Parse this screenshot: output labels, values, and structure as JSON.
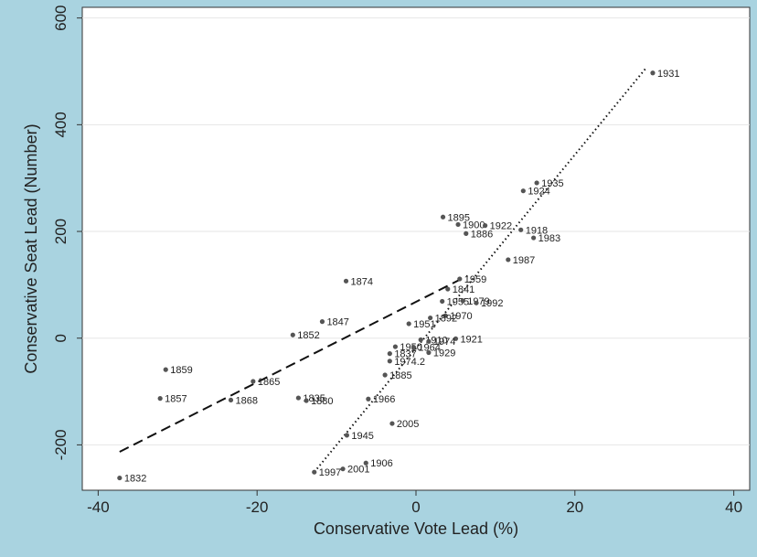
{
  "chart_data": {
    "type": "scatter",
    "title": "",
    "xlabel": "Conservative Vote Lead (%)",
    "ylabel": "Conservative Seat Lead (Number)",
    "xlim": [
      -42,
      42
    ],
    "ylim": [
      -285,
      620
    ],
    "xticks": [
      -40,
      -20,
      0,
      20,
      40
    ],
    "yticks": [
      -200,
      0,
      200,
      400,
      600
    ],
    "grid": true,
    "legend": "none",
    "point_color": "#555555",
    "points": [
      {
        "label": "1931",
        "x": 29.8,
        "y": 497
      },
      {
        "label": "1935",
        "x": 15.2,
        "y": 291
      },
      {
        "label": "1924",
        "x": 13.5,
        "y": 276
      },
      {
        "label": "1895",
        "x": 3.4,
        "y": 227
      },
      {
        "label": "1900",
        "x": 5.3,
        "y": 213
      },
      {
        "label": "1922",
        "x": 8.7,
        "y": 211
      },
      {
        "label": "1918",
        "x": 13.2,
        "y": 203
      },
      {
        "label": "1886",
        "x": 6.3,
        "y": 196
      },
      {
        "label": "1983",
        "x": 14.8,
        "y": 188
      },
      {
        "label": "1987",
        "x": 11.6,
        "y": 147
      },
      {
        "label": "1874",
        "x": -8.8,
        "y": 107
      },
      {
        "label": "1959",
        "x": 5.5,
        "y": 111
      },
      {
        "label": "1841",
        "x": 4.0,
        "y": 92
      },
      {
        "label": "1955",
        "x": 3.3,
        "y": 69
      },
      {
        "label": "1979",
        "x": 5.9,
        "y": 70
      },
      {
        "label": "1992",
        "x": 7.6,
        "y": 66
      },
      {
        "label": "1970",
        "x": 3.7,
        "y": 42
      },
      {
        "label": "1892",
        "x": 1.8,
        "y": 38
      },
      {
        "label": "1847",
        "x": -11.8,
        "y": 31
      },
      {
        "label": "1951",
        "x": -0.9,
        "y": 27
      },
      {
        "label": "1852",
        "x": -15.5,
        "y": 6
      },
      {
        "label": "1910",
        "x": 0.6,
        "y": -3
      },
      {
        "label": "1921",
        "x": 5.0,
        "y": -1
      },
      {
        "label": "1974",
        "x": 1.6,
        "y": -6
      },
      {
        "label": "1950",
        "x": -2.6,
        "y": -16
      },
      {
        "label": "1964",
        "x": -0.3,
        "y": -17
      },
      {
        "label": "1837",
        "x": -3.3,
        "y": -29
      },
      {
        "label": "1929",
        "x": 1.6,
        "y": -27
      },
      {
        "label": "1974.2",
        "x": -3.3,
        "y": -43
      },
      {
        "label": "1859",
        "x": -31.5,
        "y": -59
      },
      {
        "label": "1885",
        "x": -3.9,
        "y": -69
      },
      {
        "label": "1865",
        "x": -20.5,
        "y": -81
      },
      {
        "label": "1857",
        "x": -32.2,
        "y": -113
      },
      {
        "label": "1835",
        "x": -14.8,
        "y": -112
      },
      {
        "label": "1880",
        "x": -13.8,
        "y": -117
      },
      {
        "label": "1868",
        "x": -23.3,
        "y": -116
      },
      {
        "label": "1966",
        "x": -6.0,
        "y": -114
      },
      {
        "label": "2005",
        "x": -3.0,
        "y": -160
      },
      {
        "label": "1945",
        "x": -8.7,
        "y": -182
      },
      {
        "label": "1906",
        "x": -6.3,
        "y": -234
      },
      {
        "label": "2001",
        "x": -9.2,
        "y": -245
      },
      {
        "label": "1997",
        "x": -12.8,
        "y": -251
      },
      {
        "label": "1832",
        "x": -37.3,
        "y": -262
      }
    ],
    "fit_lines": [
      {
        "style": "dashed",
        "x": [
          -37.3,
          6.5
        ],
        "y": [
          -213,
          117
        ]
      },
      {
        "style": "dotted",
        "x": [
          -12.8,
          29.0
        ],
        "y": [
          -251,
          507
        ]
      }
    ]
  }
}
